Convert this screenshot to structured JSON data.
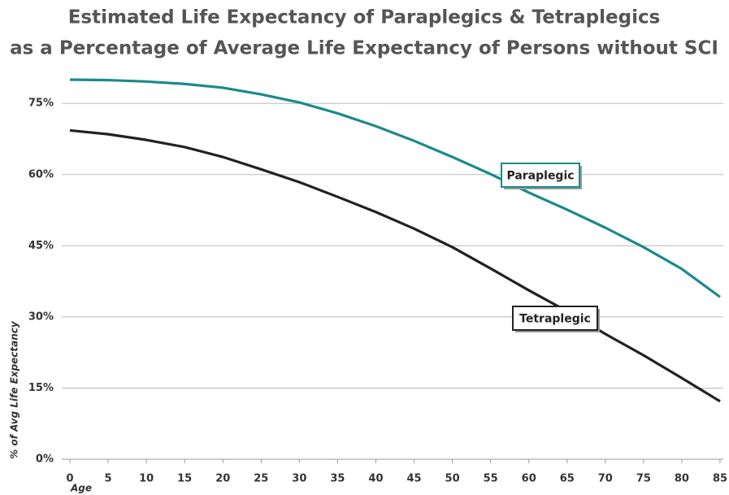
{
  "chart_data": {
    "type": "line",
    "title": [
      "Estimated Life Expectancy of Paraplegics & Tetraplegics",
      "as a Percentage of Average Life Expectancy of Persons without SCI"
    ],
    "x_label": "Age",
    "y_label": "% of Avg Life Expectancy",
    "x": [
      0,
      5,
      10,
      15,
      20,
      25,
      30,
      35,
      40,
      45,
      50,
      55,
      60,
      65,
      70,
      75,
      80,
      85
    ],
    "series": [
      {
        "name": "Paraplegic",
        "color": "#1b8a8c",
        "values": [
          80.0,
          79.9,
          79.6,
          79.1,
          78.3,
          76.9,
          75.2,
          72.9,
          70.2,
          67.1,
          63.7,
          60.1,
          56.2,
          52.6,
          48.8,
          44.7,
          40.1,
          34.2
        ]
      },
      {
        "name": "Tetraplegic",
        "color": "#222222",
        "values": [
          69.3,
          68.5,
          67.3,
          65.8,
          63.7,
          61.1,
          58.4,
          55.3,
          52.1,
          48.6,
          44.7,
          40.2,
          35.6,
          31.2,
          26.4,
          21.9,
          17.1,
          12.2
        ]
      }
    ],
    "xlim": [
      0,
      85
    ],
    "xticks": [
      0,
      5,
      10,
      15,
      20,
      25,
      30,
      35,
      40,
      45,
      50,
      55,
      60,
      65,
      70,
      75,
      80,
      85
    ],
    "ylim": [
      0,
      80
    ],
    "yticks": [
      {
        "value": 0,
        "label": "0%"
      },
      {
        "value": 15,
        "label": "15%"
      },
      {
        "value": 30,
        "label": "30%"
      },
      {
        "value": 45,
        "label": "45%"
      },
      {
        "value": 60,
        "label": "60%"
      },
      {
        "value": 75,
        "label": "75%"
      }
    ],
    "grid": true
  }
}
